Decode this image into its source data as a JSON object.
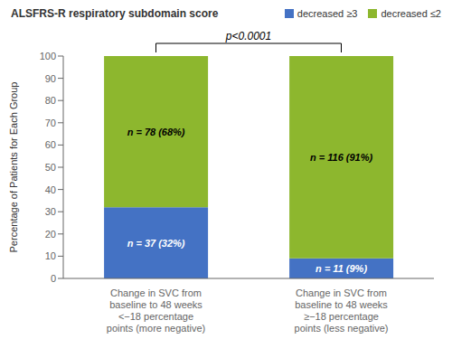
{
  "chart_data": {
    "type": "bar",
    "title": "ALSFRS-R respiratory subdomain score",
    "ylabel": "Percentage of Patients for Each Group",
    "categories": [
      "Change in SVC from\nbaseline to 48 weeks\n<−18 percentage\npoints (more negative)",
      "Change in SVC from\nbaseline to 48 weeks\n≥−18 percentage\npoints (less negative)"
    ],
    "series": [
      {
        "name": "decreased ≥3",
        "color": "#4472C4",
        "values": [
          32,
          9
        ],
        "value_labels": [
          "n = 37 (32%)",
          "n = 11 (9%)"
        ]
      },
      {
        "name": "decreased ≤2",
        "color": "#8DB72E",
        "values": [
          68,
          91
        ],
        "value_labels": [
          "n = 78 (68%)",
          "n = 116 (91%)"
        ]
      }
    ],
    "stacked": true,
    "data_labels": true,
    "legend": "top",
    "grid": false,
    "annotations": [
      "p<0.0001"
    ],
    "ylim": [
      0,
      100
    ],
    "yticks": [
      0,
      10,
      20,
      30,
      40,
      50,
      60,
      70,
      80,
      90,
      100
    ]
  }
}
